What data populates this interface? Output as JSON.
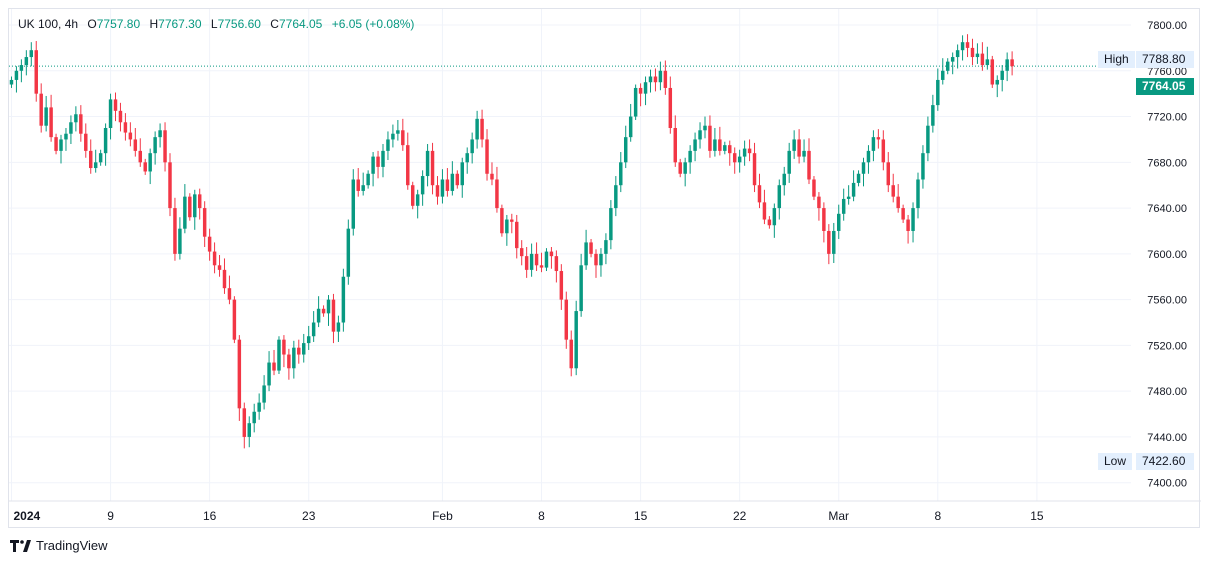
{
  "legend": {
    "symbol": "UK 100, 4h",
    "open_label": "O",
    "open": "7757.80",
    "high_label": "H",
    "high": "7767.30",
    "low_label": "L",
    "low": "7756.60",
    "close_label": "C",
    "close": "7764.05",
    "change": "+6.05 (+0.08%)"
  },
  "badges": {
    "high_label": "High",
    "high_value": "7788.80",
    "low_label": "Low",
    "low_value": "7422.60",
    "last_price": "7764.05"
  },
  "colors": {
    "up": "#089981",
    "down": "#f23645",
    "grid": "#f0f3fa",
    "last_line": "#089981"
  },
  "footer": {
    "brand": "TradingView",
    "logo": "tradingview-logo"
  },
  "chart_data": {
    "type": "candlestick",
    "title": "UK 100, 4h",
    "y_ticks": [
      7800,
      7760,
      7720,
      7680,
      7640,
      7600,
      7560,
      7520,
      7480,
      7440,
      7400
    ],
    "y_tick_labels": [
      "7800.00",
      "7760.00",
      "7720.00",
      "7680.00",
      "7640.00",
      "7600.00",
      "7560.00",
      "7520.00",
      "7480.00",
      "7440.00",
      "7400.00"
    ],
    "ylim": [
      7384,
      7814
    ],
    "x_ticks": [
      {
        "label": "2024",
        "index": 0,
        "bold": true
      },
      {
        "label": "9",
        "index": 20
      },
      {
        "label": "16",
        "index": 40
      },
      {
        "label": "23",
        "index": 60
      },
      {
        "label": "Feb",
        "index": 87
      },
      {
        "label": "8",
        "index": 107
      },
      {
        "label": "15",
        "index": 127
      },
      {
        "label": "22",
        "index": 147
      },
      {
        "label": "Mar",
        "index": 167
      },
      {
        "label": "8",
        "index": 187
      },
      {
        "label": "15",
        "index": 207
      }
    ],
    "x_domain": [
      -0.5,
      226
    ],
    "last_price": 7764.05,
    "series_high": 7788.8,
    "series_low": 7422.6,
    "closes": [
      7752,
      7760,
      7765,
      7772,
      7778,
      7740,
      7712,
      7728,
      7702,
      7690,
      7700,
      7705,
      7715,
      7722,
      7705,
      7690,
      7675,
      7680,
      7688,
      7710,
      7735,
      7725,
      7715,
      7706,
      7700,
      7690,
      7680,
      7672,
      7688,
      7702,
      7708,
      7680,
      7640,
      7600,
      7622,
      7650,
      7632,
      7652,
      7640,
      7615,
      7602,
      7590,
      7586,
      7570,
      7560,
      7525,
      7465,
      7440,
      7452,
      7462,
      7470,
      7485,
      7505,
      7498,
      7525,
      7512,
      7500,
      7518,
      7512,
      7522,
      7528,
      7540,
      7552,
      7548,
      7560,
      7532,
      7540,
      7580,
      7622,
      7665,
      7655,
      7660,
      7670,
      7685,
      7676,
      7690,
      7700,
      7705,
      7708,
      7695,
      7660,
      7642,
      7652,
      7668,
      7690,
      7660,
      7650,
      7665,
      7655,
      7670,
      7660,
      7680,
      7688,
      7700,
      7718,
      7700,
      7670,
      7665,
      7640,
      7618,
      7630,
      7628,
      7605,
      7598,
      7586,
      7600,
      7590,
      7588,
      7602,
      7598,
      7585,
      7560,
      7525,
      7500,
      7550,
      7590,
      7610,
      7600,
      7590,
      7600,
      7612,
      7640,
      7660,
      7680,
      7702,
      7720,
      7745,
      7740,
      7750,
      7755,
      7750,
      7760,
      7745,
      7710,
      7680,
      7670,
      7680,
      7690,
      7700,
      7708,
      7712,
      7690,
      7700,
      7690,
      7695,
      7688,
      7680,
      7685,
      7692,
      7688,
      7660,
      7645,
      7630,
      7625,
      7640,
      7660,
      7670,
      7690,
      7700,
      7685,
      7690,
      7665,
      7650,
      7640,
      7620,
      7600,
      7620,
      7635,
      7648,
      7650,
      7662,
      7670,
      7680,
      7690,
      7702,
      7700,
      7680,
      7660,
      7650,
      7640,
      7630,
      7620,
      7640,
      7665,
      7688,
      7712,
      7730,
      7752,
      7760,
      7768,
      7772,
      7778,
      7785,
      7780,
      7772,
      7775,
      7765,
      7770,
      7748,
      7752,
      7760,
      7770,
      7764
    ]
  }
}
